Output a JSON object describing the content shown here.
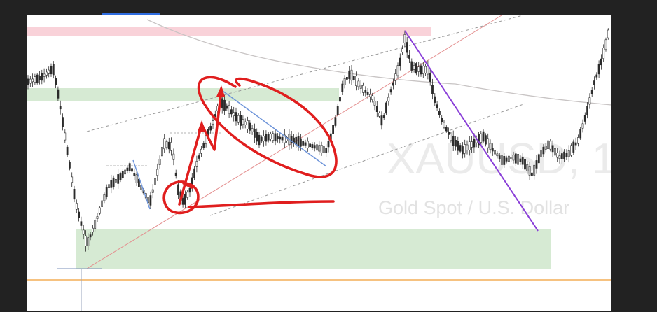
{
  "watermark": {
    "symbol": "XAUUSD, 1",
    "description": "Gold Spot / U.S. Dollar"
  },
  "colors": {
    "frame": "#222222",
    "chart_bg": "#ffffff",
    "candle": "#2b2b2b",
    "supply_zone": "#f9d2d9",
    "demand_zone": "#d6ead3",
    "resistance_band": "#d6ead3",
    "ma_line": "#c8c4c4",
    "channel_dashes": "#9a9a9a",
    "diagonal_trend": "#e48f8f",
    "blue_lines": "#6c93d9",
    "purple_line": "#8a3fd8",
    "red_annotation": "#e01e1e",
    "price_line": "#f4ad56",
    "chrome_badge": "#2f6de0"
  },
  "chart_data": {
    "type": "candlestick",
    "annotations": [
      "supply zone",
      "demand zone",
      "resistance band",
      "ascending channel",
      "descending flag",
      "double-bottom circle",
      "impulse arrows"
    ]
  }
}
